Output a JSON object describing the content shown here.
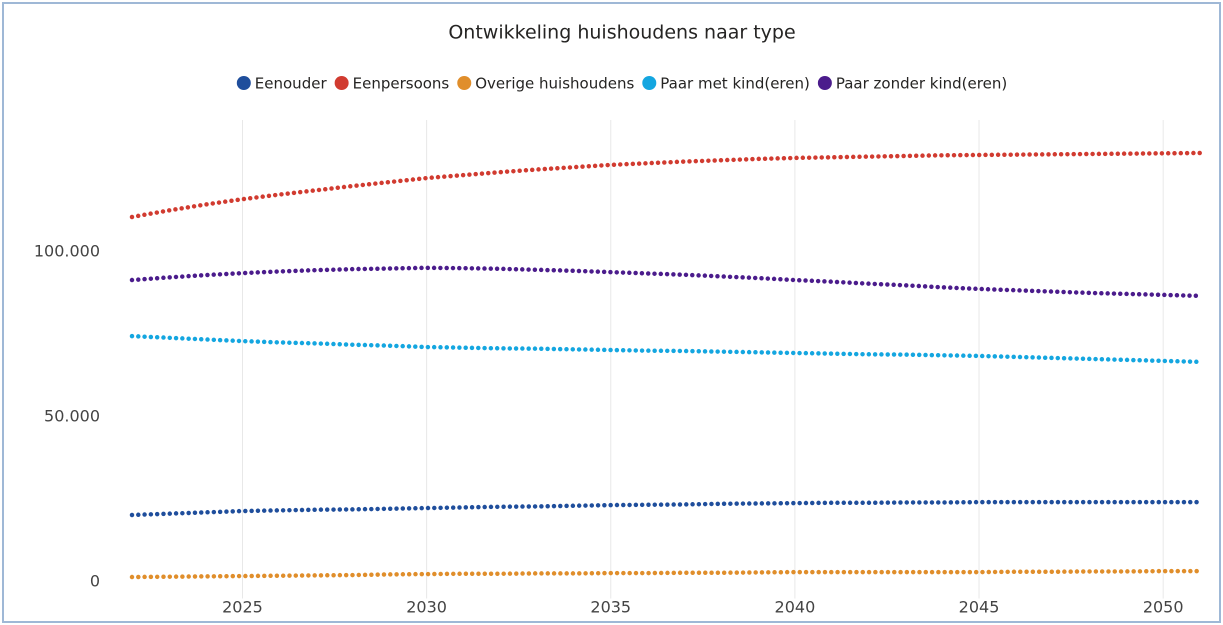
{
  "chart_data": {
    "type": "line",
    "title": "Ontwikkeling huishoudens naar type",
    "x": [
      2022,
      2023,
      2024,
      2025,
      2026,
      2027,
      2028,
      2029,
      2030,
      2031,
      2032,
      2033,
      2034,
      2035,
      2036,
      2037,
      2038,
      2039,
      2040,
      2041,
      2042,
      2043,
      2044,
      2045,
      2046,
      2047,
      2048,
      2049,
      2050,
      2051
    ],
    "series": [
      {
        "name": "Eenouder",
        "color": "#1f4e9c",
        "values": [
          20300,
          20700,
          21100,
          21500,
          21700,
          21900,
          22000,
          22200,
          22400,
          22600,
          22800,
          22900,
          23100,
          23300,
          23400,
          23500,
          23700,
          23800,
          23900,
          24000,
          24000,
          24100,
          24100,
          24200,
          24200,
          24200,
          24200,
          24200,
          24200,
          24200
        ]
      },
      {
        "name": "Eenpersoons",
        "color": "#d13b30",
        "values": [
          110600,
          112600,
          114400,
          116000,
          117400,
          118700,
          120000,
          121200,
          122400,
          123300,
          124200,
          125000,
          125700,
          126400,
          126900,
          127400,
          127800,
          128200,
          128500,
          128700,
          128900,
          129100,
          129300,
          129400,
          129500,
          129600,
          129700,
          129800,
          129900,
          130000
        ]
      },
      {
        "name": "Overige huishoudens",
        "color": "#e08e2b",
        "values": [
          1500,
          1600,
          1700,
          1800,
          1900,
          2000,
          2100,
          2300,
          2400,
          2500,
          2500,
          2600,
          2600,
          2700,
          2700,
          2800,
          2800,
          2900,
          3000,
          3000,
          3000,
          3000,
          3000,
          3000,
          3100,
          3100,
          3200,
          3200,
          3300,
          3300
        ]
      },
      {
        "name": "Paar met kind(eren)",
        "color": "#14a6e0",
        "values": [
          74500,
          74000,
          73500,
          73000,
          72600,
          72300,
          71900,
          71600,
          71200,
          71000,
          70800,
          70700,
          70500,
          70300,
          70100,
          70000,
          69800,
          69600,
          69400,
          69200,
          69000,
          68900,
          68700,
          68500,
          68200,
          67900,
          67600,
          67300,
          67000,
          66700
        ]
      },
      {
        "name": "Paar zonder kind(eren)",
        "color": "#4b1c8c",
        "values": [
          91500,
          92300,
          93000,
          93600,
          94100,
          94500,
          94800,
          95000,
          95200,
          95100,
          94900,
          94600,
          94300,
          93900,
          93500,
          93100,
          92600,
          92100,
          91500,
          91000,
          90400,
          89900,
          89300,
          88800,
          88400,
          88000,
          87600,
          87300,
          87000,
          86700
        ]
      }
    ],
    "xlim": [
      2022,
      2051
    ],
    "xticks": [
      2025,
      2030,
      2035,
      2040,
      2045,
      2050
    ],
    "ylim": [
      -5000,
      140000
    ],
    "yticks": [
      0,
      {
        "value": 50000,
        "label": "50.000"
      },
      {
        "value": 100000,
        "label": "100.000"
      }
    ],
    "grid": "x"
  }
}
